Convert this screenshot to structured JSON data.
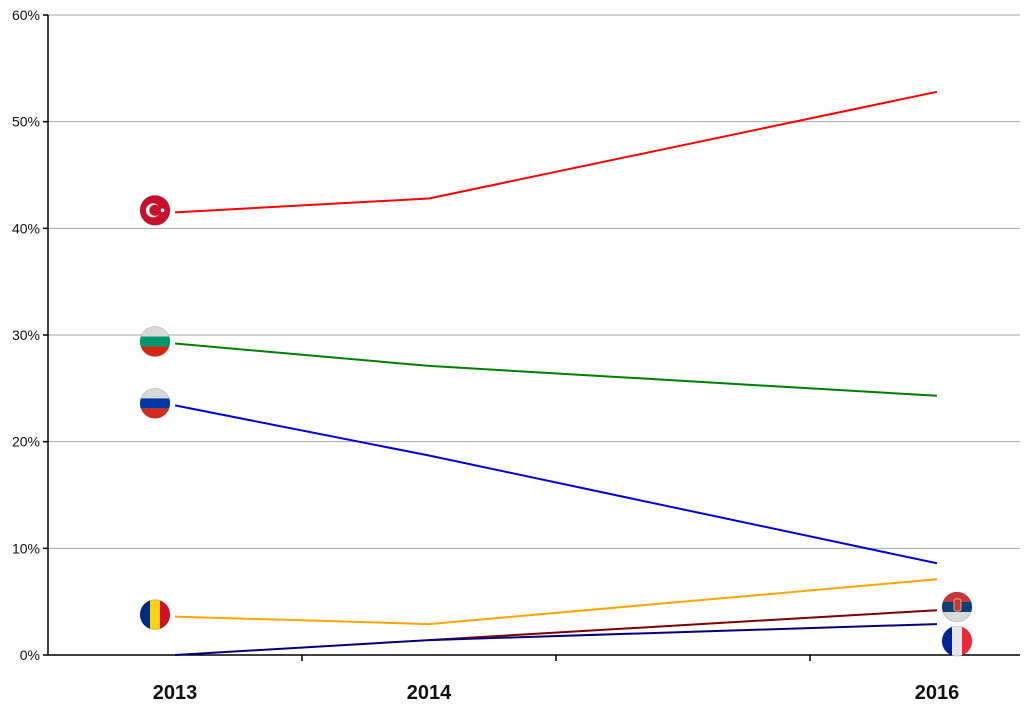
{
  "chart_data": {
    "type": "line",
    "xlabel": "",
    "ylabel": "",
    "categories": [
      "2013",
      "2014",
      "2016"
    ],
    "ylim": [
      0,
      60
    ],
    "yticks": [
      0,
      10,
      20,
      30,
      40,
      50,
      60
    ],
    "yticklabels": [
      "0%",
      "10%",
      "20%",
      "30%",
      "40%",
      "50%",
      "60%"
    ],
    "grid": true,
    "series": [
      {
        "color": "#ff0000",
        "values": [
          41.5,
          42.8,
          52.8
        ],
        "flag": "turkey-flag-icon",
        "flag_at": "2013"
      },
      {
        "color": "#008000",
        "values": [
          29.2,
          27.1,
          24.3
        ],
        "flag": "bulgaria-flag-icon",
        "flag_at": "2013"
      },
      {
        "color": "#0000e0",
        "values": [
          23.4,
          18.7,
          8.6
        ],
        "flag": "russia-flag-icon",
        "flag_at": "2013"
      },
      {
        "color": "#ffa500",
        "values": [
          3.6,
          2.9,
          7.1
        ],
        "flag": "romania-flag-icon",
        "flag_at": "2013"
      },
      {
        "color": "#800000",
        "values": [
          null,
          1.4,
          4.2
        ],
        "flag": "serbia-flag-icon",
        "flag_at": "2016"
      },
      {
        "color": "#000080",
        "values": [
          0.0,
          1.4,
          2.9
        ],
        "flag": "france-flag-icon",
        "flag_at": "2016"
      }
    ]
  }
}
